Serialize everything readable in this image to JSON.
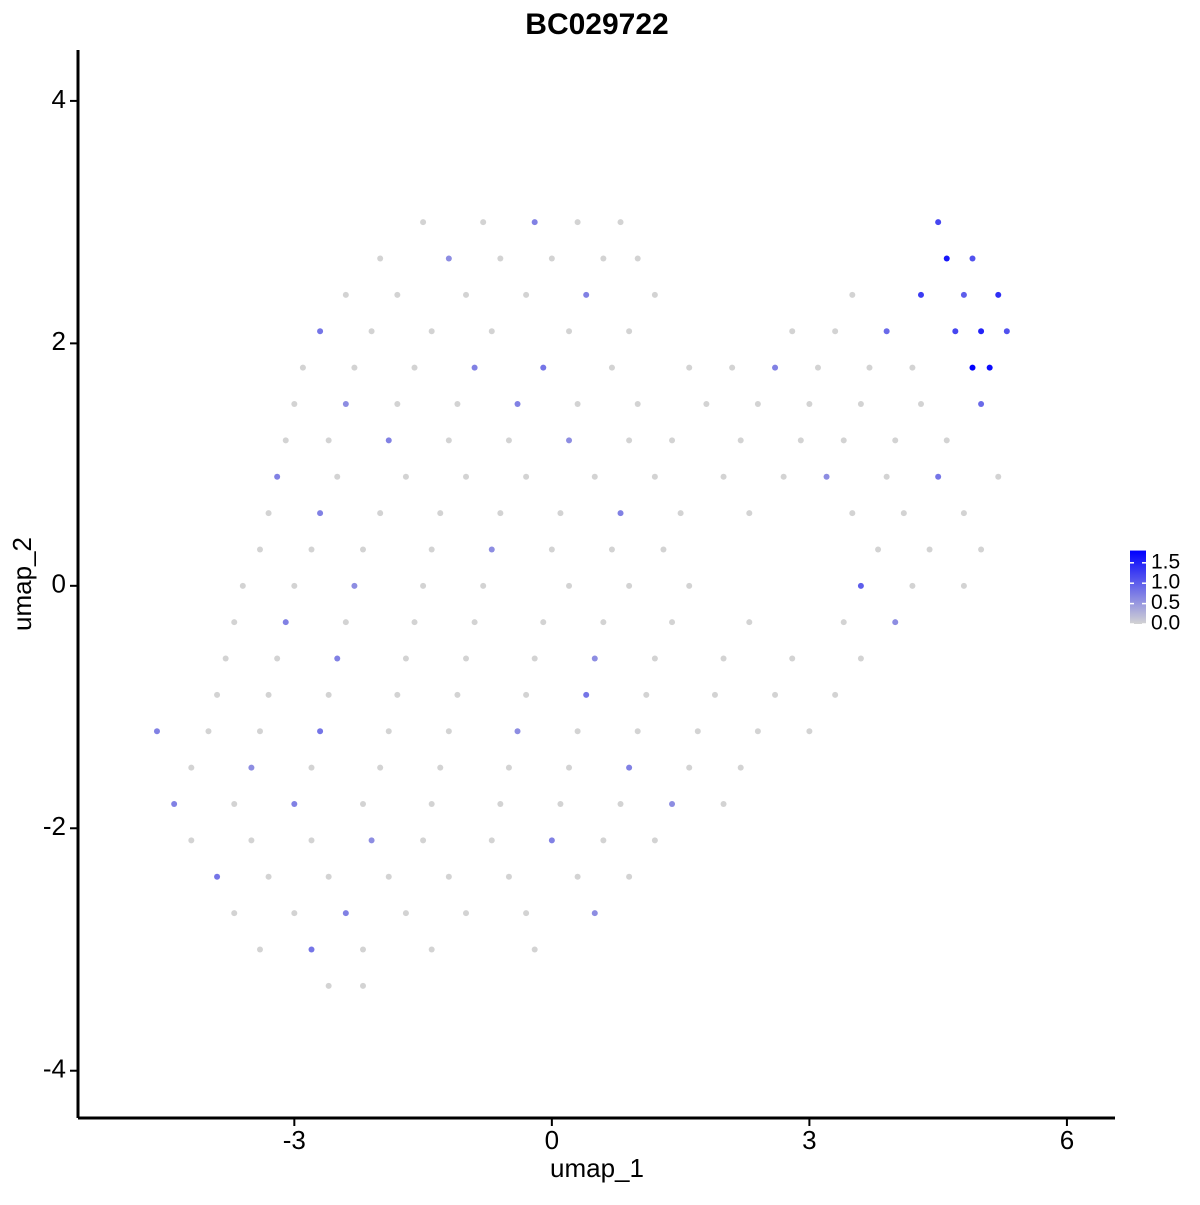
{
  "chart_data": {
    "type": "scatter",
    "title": "BC029722",
    "x_label": "umap_1",
    "y_label": "umap_2",
    "xlim": [
      -5.52,
      6.56
    ],
    "ylim": [
      -4.39,
      4.42
    ],
    "xticks": [
      -3,
      0,
      3,
      6
    ],
    "yticks": [
      -4,
      -2,
      0,
      2,
      4
    ],
    "grid": false,
    "color_low": "#d3d3d3",
    "color_high": "#0000ff",
    "colorlim": [
      0,
      1.8
    ],
    "colorticks": [
      {
        "value": 0,
        "label": "0.0"
      },
      0.5,
      {
        "value": 1,
        "label": "1.0"
      },
      1.5
    ],
    "series": [
      {
        "x": [
          -1.5,
          -0.8,
          -0.2,
          0.3,
          0.8,
          4.5,
          -2.0,
          -1.2,
          -0.6,
          0.0,
          0.6,
          1.0,
          4.6,
          4.9,
          -2.4,
          -1.8,
          -1.0,
          -0.3,
          0.4,
          1.2,
          3.5,
          4.3,
          4.8,
          5.2,
          -2.7,
          -2.1,
          -1.4,
          -0.7,
          0.2,
          0.9,
          2.8,
          3.3,
          3.9,
          4.7,
          5.0,
          5.3,
          -2.9,
          -2.3,
          -1.6,
          -0.9,
          -0.1,
          0.7,
          1.6,
          2.1,
          2.6,
          3.1,
          3.7,
          4.2,
          4.9,
          5.1,
          -3.0,
          -2.4,
          -1.8,
          -1.1,
          -0.4,
          0.3,
          1.0,
          1.8,
          2.4,
          3.0,
          3.6,
          4.3,
          5.0,
          -3.1,
          -2.6,
          -1.9,
          -1.2,
          -0.5,
          0.2,
          0.9,
          1.4,
          2.2,
          2.9,
          3.4,
          4.0,
          4.6,
          -3.2,
          -2.5,
          -1.7,
          -1.0,
          -0.3,
          0.5,
          1.2,
          2.0,
          2.7,
          3.2,
          3.9,
          4.5,
          5.2,
          -3.3,
          -2.7,
          -2.0,
          -1.3,
          -0.6,
          0.1,
          0.8,
          1.5,
          2.3,
          3.5,
          4.1,
          4.8,
          -3.4,
          -2.8,
          -2.2,
          -1.4,
          -0.7,
          0.0,
          0.7,
          1.3,
          3.8,
          4.4,
          5.0,
          -3.6,
          -3.0,
          -2.3,
          -1.5,
          -0.8,
          0.2,
          0.9,
          1.6,
          3.6,
          4.2,
          4.8,
          -3.7,
          -3.1,
          -2.4,
          -1.6,
          -0.9,
          -0.1,
          0.6,
          1.4,
          2.3,
          3.4,
          4.0,
          -3.8,
          -3.2,
          -2.5,
          -1.7,
          -1.0,
          -0.2,
          0.5,
          1.2,
          2.0,
          2.8,
          3.6,
          -3.9,
          -3.3,
          -2.6,
          -1.8,
          -1.1,
          -0.3,
          0.4,
          1.1,
          1.9,
          2.6,
          3.3,
          -4.6,
          -4.0,
          -3.4,
          -2.7,
          -1.9,
          -1.2,
          -0.4,
          0.3,
          1.0,
          1.7,
          2.4,
          3.0,
          -4.2,
          -3.5,
          -2.8,
          -2.0,
          -1.3,
          -0.5,
          0.2,
          0.9,
          1.6,
          2.2,
          -4.4,
          -3.7,
          -3.0,
          -2.2,
          -1.4,
          -0.6,
          0.1,
          0.8,
          1.4,
          2.0,
          -4.2,
          -3.5,
          -2.8,
          -2.1,
          -1.5,
          -0.7,
          0.0,
          0.6,
          1.2,
          -3.9,
          -3.3,
          -2.6,
          -1.9,
          -1.2,
          -0.5,
          0.3,
          0.9,
          -3.7,
          -3.0,
          -2.4,
          -1.7,
          -1.0,
          -0.3,
          0.5,
          -3.4,
          -2.8,
          -2.2,
          -1.4,
          -0.2,
          -2.6,
          -2.2
        ],
        "values": [
          3.0,
          3.0,
          3.0,
          3.0,
          3.0,
          3.0,
          2.7,
          2.7,
          2.7,
          2.7,
          2.7,
          2.7,
          2.7,
          2.7,
          2.4,
          2.4,
          2.4,
          2.4,
          2.4,
          2.4,
          2.4,
          2.4,
          2.4,
          2.4,
          2.1,
          2.1,
          2.1,
          2.1,
          2.1,
          2.1,
          2.1,
          2.1,
          2.1,
          2.1,
          2.1,
          2.1,
          1.8,
          1.8,
          1.8,
          1.8,
          1.8,
          1.8,
          1.8,
          1.8,
          1.8,
          1.8,
          1.8,
          1.8,
          1.8,
          1.8,
          1.5,
          1.5,
          1.5,
          1.5,
          1.5,
          1.5,
          1.5,
          1.5,
          1.5,
          1.5,
          1.5,
          1.5,
          1.5,
          1.2,
          1.2,
          1.2,
          1.2,
          1.2,
          1.2,
          1.2,
          1.2,
          1.2,
          1.2,
          1.2,
          1.2,
          1.2,
          0.9,
          0.9,
          0.9,
          0.9,
          0.9,
          0.9,
          0.9,
          0.9,
          0.9,
          0.9,
          0.9,
          0.9,
          0.9,
          0.6,
          0.6,
          0.6,
          0.6,
          0.6,
          0.6,
          0.6,
          0.6,
          0.6,
          0.6,
          0.6,
          0.6,
          0.3,
          0.3,
          0.3,
          0.3,
          0.3,
          0.3,
          0.3,
          0.3,
          0.3,
          0.3,
          0.3,
          0.0,
          0.0,
          0.0,
          0.0,
          0.0,
          0.0,
          0.0,
          0.0,
          0.0,
          0.0,
          0.0,
          -0.3,
          -0.3,
          -0.3,
          -0.3,
          -0.3,
          -0.3,
          -0.3,
          -0.3,
          -0.3,
          -0.3,
          -0.3,
          -0.6,
          -0.6,
          -0.6,
          -0.6,
          -0.6,
          -0.6,
          -0.6,
          -0.6,
          -0.6,
          -0.6,
          -0.6,
          -0.9,
          -0.9,
          -0.9,
          -0.9,
          -0.9,
          -0.9,
          -0.9,
          -0.9,
          -0.9,
          -0.9,
          -0.9,
          -1.2,
          -1.2,
          -1.2,
          -1.2,
          -1.2,
          -1.2,
          -1.2,
          -1.2,
          -1.2,
          -1.2,
          -1.2,
          -1.2,
          -1.5,
          -1.5,
          -1.5,
          -1.5,
          -1.5,
          -1.5,
          -1.5,
          -1.5,
          -1.5,
          -1.5,
          -1.8,
          -1.8,
          -1.8,
          -1.8,
          -1.8,
          -1.8,
          -1.8,
          -1.8,
          -1.8,
          -1.8,
          -2.1,
          -2.1,
          -2.1,
          -2.1,
          -2.1,
          -2.1,
          -2.1,
          -2.1,
          -2.1,
          -2.4,
          -2.4,
          -2.4,
          -2.4,
          -2.4,
          -2.4,
          -2.4,
          -2.4,
          -2.7,
          -2.7,
          -2.7,
          -2.7,
          -2.7,
          -2.7,
          -2.7,
          -3.0,
          -3.0,
          -3.0,
          -3.0,
          -3.0,
          -3.3,
          -3.3
        ],
        "expression": [
          0,
          0,
          0.7,
          0,
          0,
          1.2,
          0,
          0.6,
          0,
          0,
          0,
          0,
          1.6,
          1.1,
          0,
          0,
          0,
          0,
          0.7,
          0,
          0,
          1.3,
          1.0,
          1.4,
          0.8,
          0,
          0,
          0,
          0,
          0,
          0,
          0,
          0.9,
          1.2,
          1.5,
          1.1,
          0,
          0,
          0,
          0.7,
          0.8,
          0,
          0,
          0,
          0.7,
          0,
          0,
          0,
          1.8,
          1.7,
          0,
          0.6,
          0,
          0,
          0.7,
          0,
          0,
          0,
          0,
          0,
          0,
          0,
          0.9,
          0,
          0,
          0.7,
          0,
          0,
          0.6,
          0,
          0,
          0,
          0,
          0,
          0,
          0,
          0.7,
          0,
          0,
          0,
          0,
          0,
          0,
          0,
          0,
          0.6,
          0,
          0.8,
          0,
          0,
          0.7,
          0,
          0,
          0,
          0,
          0.7,
          0,
          0,
          0,
          0,
          0,
          0,
          0,
          0,
          0,
          0.6,
          0,
          0,
          0,
          0,
          0,
          0,
          0,
          0,
          0.6,
          0,
          0,
          0,
          0,
          0,
          1.0,
          0,
          0,
          0,
          0.7,
          0,
          0,
          0,
          0,
          0,
          0,
          0,
          0,
          0.6,
          0,
          0,
          0.7,
          0,
          0,
          0,
          0.6,
          0,
          0,
          0,
          0,
          0,
          0,
          0,
          0,
          0,
          0,
          0.8,
          0,
          0,
          0,
          0,
          0.7,
          0,
          0,
          0.8,
          0,
          0,
          0.6,
          0,
          0,
          0,
          0,
          0,
          0,
          0.6,
          0,
          0,
          0,
          0,
          0,
          0.7,
          0,
          0,
          0.7,
          0,
          0.7,
          0,
          0,
          0,
          0,
          0,
          0.6,
          0,
          0,
          0,
          0,
          0.6,
          0,
          0,
          0.7,
          0,
          0,
          0.8,
          0,
          0,
          0,
          0,
          0,
          0,
          0,
          0,
          0,
          0.7,
          0,
          0,
          0,
          0.6,
          0,
          0.8,
          0,
          0,
          0,
          0,
          0
        ]
      }
    ]
  }
}
